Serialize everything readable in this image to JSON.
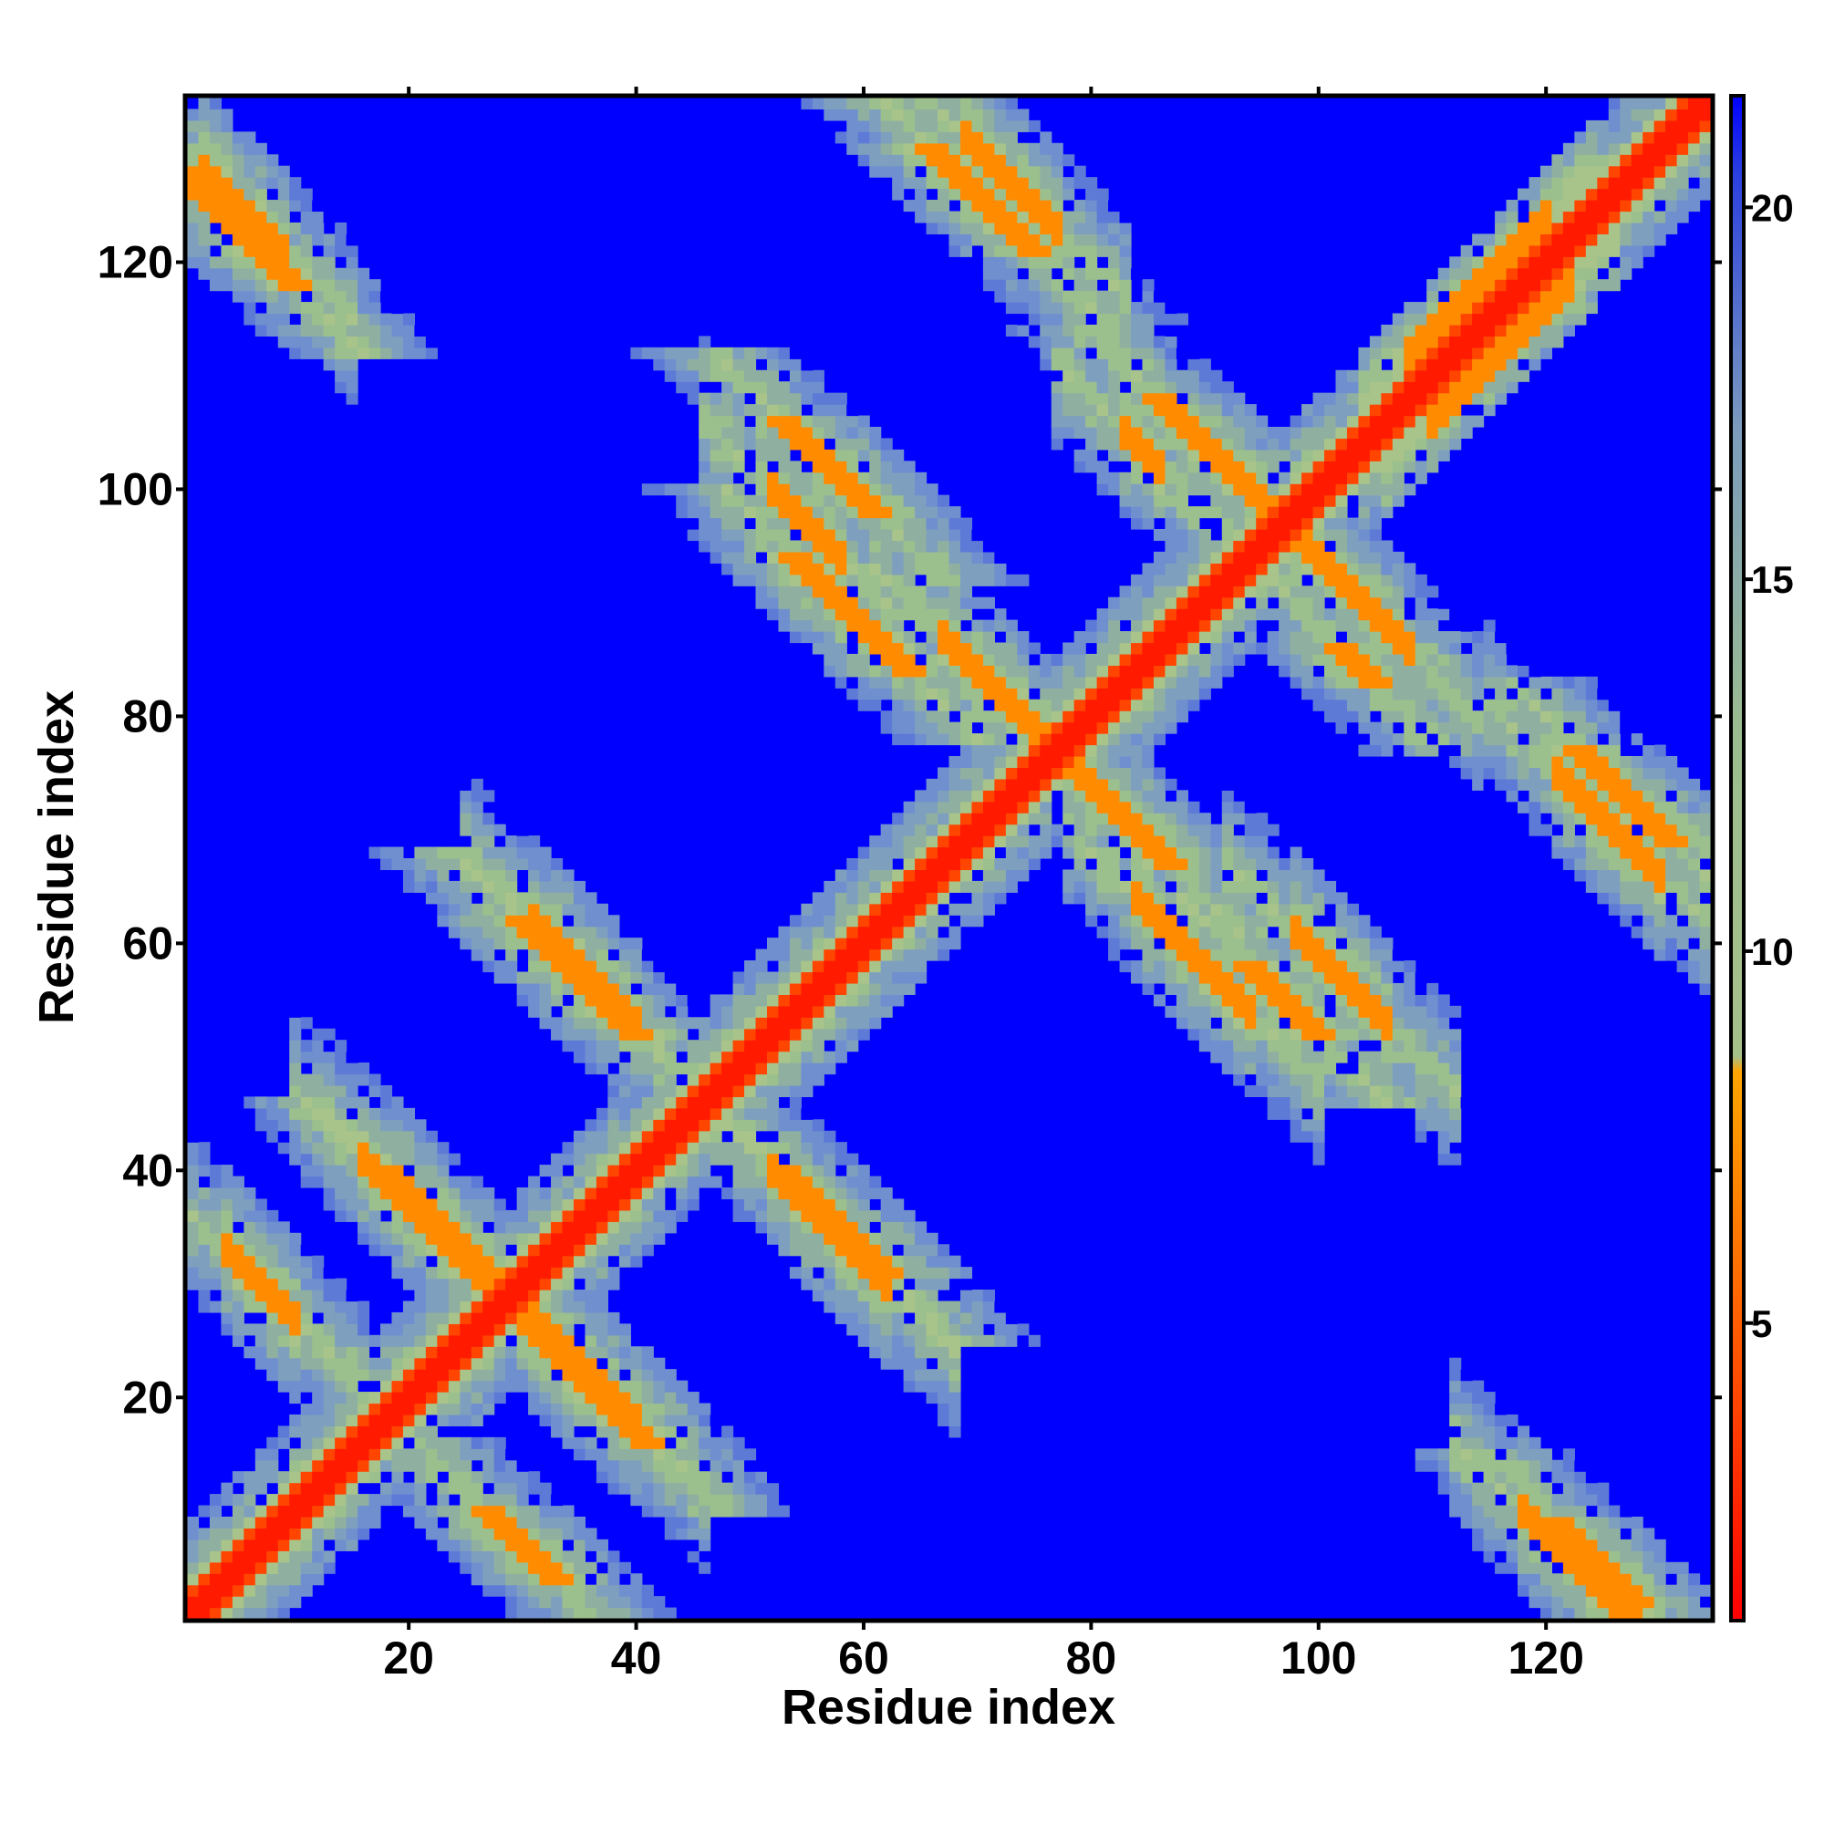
{
  "chart_data": {
    "type": "heatmap",
    "title": "",
    "xlabel": "Residue index",
    "ylabel": "Residue index",
    "x_range": [
      1,
      134
    ],
    "y_range": [
      1,
      134
    ],
    "x_ticks": [
      "20",
      "40",
      "60",
      "80",
      "100",
      "120"
    ],
    "y_ticks": [
      "20",
      "40",
      "60",
      "80",
      "100",
      "120"
    ],
    "colorbar": {
      "range": [
        1,
        21.5
      ],
      "ticks": [
        "5",
        "10",
        "15",
        "20"
      ],
      "tick_values": [
        5,
        10,
        15,
        20
      ],
      "colors": {
        "near": "#ff0000",
        "mid_near": "#ff8c00",
        "mid": "#9fbf8c",
        "mid_far": "#7f9fbf",
        "far": "#0000ff"
      }
    },
    "matrix_size": 134,
    "contact_bands": [
      {
        "name": "main-diagonal",
        "kind": "diagonal",
        "i_start": 1,
        "i_end": 134,
        "offset": 0
      },
      {
        "kind": "anti",
        "sum": 37,
        "x_start": 4,
        "x_end": 10,
        "strength": 6.5
      },
      {
        "kind": "anti",
        "sum": 58,
        "x_start": 19,
        "x_end": 40,
        "strength": 6.0
      },
      {
        "kind": "anti",
        "sum": 93,
        "x_start": 31,
        "x_end": 40,
        "strength": 5.5
      },
      {
        "kind": "anti",
        "sum": 92,
        "x_start": 52,
        "x_end": 62,
        "strength": 5.5
      },
      {
        "kind": "anti",
        "sum": 57,
        "x_start": 16,
        "x_end": 30,
        "strength": 6.0
      },
      {
        "kind": "anti",
        "sum": 130,
        "x_start": 2,
        "x_end": 9,
        "strength": 6.0
      },
      {
        "kind": "anti",
        "sum": 152,
        "x_start": 52,
        "x_end": 58,
        "strength": 6.0
      },
      {
        "kind": "anti",
        "sum": 154,
        "x_start": 67,
        "x_end": 76,
        "strength": 6.0
      },
      {
        "kind": "anti",
        "sum": 148,
        "x_start": 84,
        "x_end": 94,
        "strength": 6.0
      },
      {
        "kind": "anti",
        "sum": 159,
        "x_start": 98,
        "x_end": 106,
        "strength": 6.0
      },
      {
        "kind": "anti",
        "sum": 200,
        "x_start": 69,
        "x_end": 77,
        "strength": 6.0
      },
      {
        "kind": "anti",
        "sum": 188,
        "x_start": 83,
        "x_end": 86,
        "strength": 6.0
      },
      {
        "kind": "anti",
        "sum": 194,
        "x_start": 97,
        "x_end": 108,
        "strength": 6.0
      },
      {
        "kind": "anti",
        "sum": 196,
        "x_start": 121,
        "x_end": 130,
        "strength": 6.0
      },
      {
        "kind": "anti",
        "sum": 128,
        "x_start": 118,
        "x_end": 128,
        "strength": 6.0
      },
      {
        "kind": "parallel",
        "offset": 4,
        "x_start": 108,
        "x_end": 120,
        "strength": 5.0
      },
      {
        "kind": "parallel",
        "offset": -4,
        "x_start": 110,
        "x_end": 122,
        "strength": 5.0
      }
    ]
  }
}
